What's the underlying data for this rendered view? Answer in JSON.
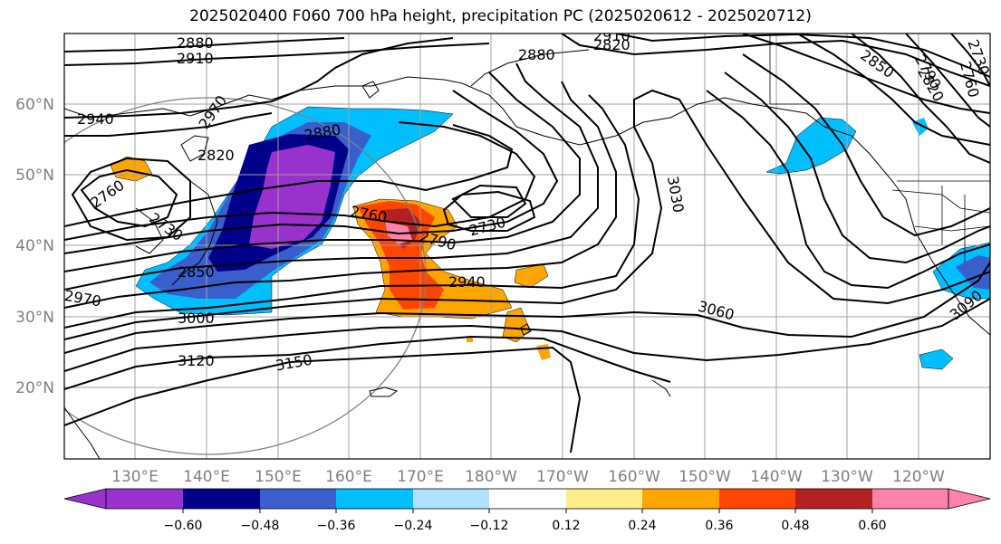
{
  "title": "2025020400 F060 700 hPa height, precipitation PC (2025020612 - 2025020712)",
  "map": {
    "lat_labels": [
      "60°N",
      "50°N",
      "40°N",
      "30°N",
      "20°N"
    ],
    "lon_labels": [
      "130°E",
      "140°E",
      "150°E",
      "160°E",
      "170°E",
      "180°W",
      "170°W",
      "160°W",
      "150°W",
      "140°W",
      "130°W",
      "120°W"
    ],
    "contour_labels": [
      "2880",
      "2910",
      "2940",
      "2970",
      "2820",
      "2760",
      "2730",
      "2850",
      "2970",
      "3000",
      "3120",
      "3150",
      "2880",
      "2760",
      "2730",
      "2790",
      "2940",
      "3030",
      "3060",
      "2850",
      "2790",
      "2820",
      "2760",
      "3090",
      "2910",
      "2820",
      "2730",
      "2880"
    ],
    "contour_color": "#000000",
    "coastline_color": "#000000",
    "grid_color": "#a0a0a0",
    "range_ring_color": "#808080"
  },
  "colorbar": {
    "ticks": [
      "−0.60",
      "−0.48",
      "−0.36",
      "−0.24",
      "−0.12",
      "0.12",
      "0.24",
      "0.36",
      "0.48",
      "0.60"
    ],
    "colors": [
      "#9932cc",
      "#00008b",
      "#3a5fcd",
      "#00bfff",
      "#b0e2ff",
      "#ffffff",
      "#ffec8b",
      "#ffa500",
      "#ff4500",
      "#b22222",
      "#ff82ab"
    ]
  }
}
